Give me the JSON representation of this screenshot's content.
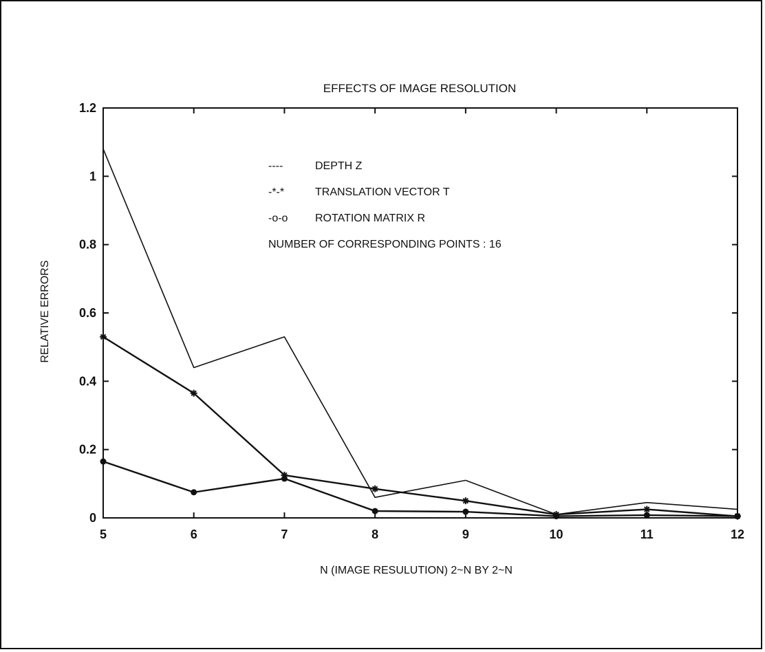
{
  "chart_data": {
    "type": "line",
    "title": "EFFECTS OF IMAGE RESOLUTION",
    "xlabel": "N (IMAGE RESULUTION) 2~N BY 2~N",
    "ylabel": "RELATIVE ERRORS",
    "x": [
      5,
      6,
      7,
      8,
      9,
      10,
      11,
      12
    ],
    "xlim": [
      5,
      12
    ],
    "ylim": [
      0,
      1.2
    ],
    "xticks": [
      "5",
      "6",
      "7",
      "8",
      "9",
      "10",
      "11",
      "12"
    ],
    "yticks": [
      "0",
      "0.2",
      "0.4",
      "0.6",
      "0.8",
      "1",
      "1.2"
    ],
    "grid": false,
    "legend_position": "top-center",
    "series": [
      {
        "name": "DEPTH Z",
        "marker": "none",
        "legend_key": "----",
        "values": [
          1.08,
          0.44,
          0.53,
          0.06,
          0.11,
          0.01,
          0.045,
          0.025
        ]
      },
      {
        "name": "TRANSLATION VECTOR T",
        "marker": "star",
        "legend_key": "-*-*",
        "values": [
          0.53,
          0.365,
          0.125,
          0.085,
          0.05,
          0.01,
          0.025,
          0.005
        ]
      },
      {
        "name": "ROTATION MATRIX R",
        "marker": "circle",
        "legend_key": "-o-o",
        "values": [
          0.165,
          0.075,
          0.115,
          0.02,
          0.018,
          0.005,
          0.008,
          0.005
        ]
      }
    ],
    "annotation": "NUMBER OF CORRESPONDING POINTS : 16",
    "colors": {
      "line": "#111111",
      "background": "#ffffff"
    }
  }
}
